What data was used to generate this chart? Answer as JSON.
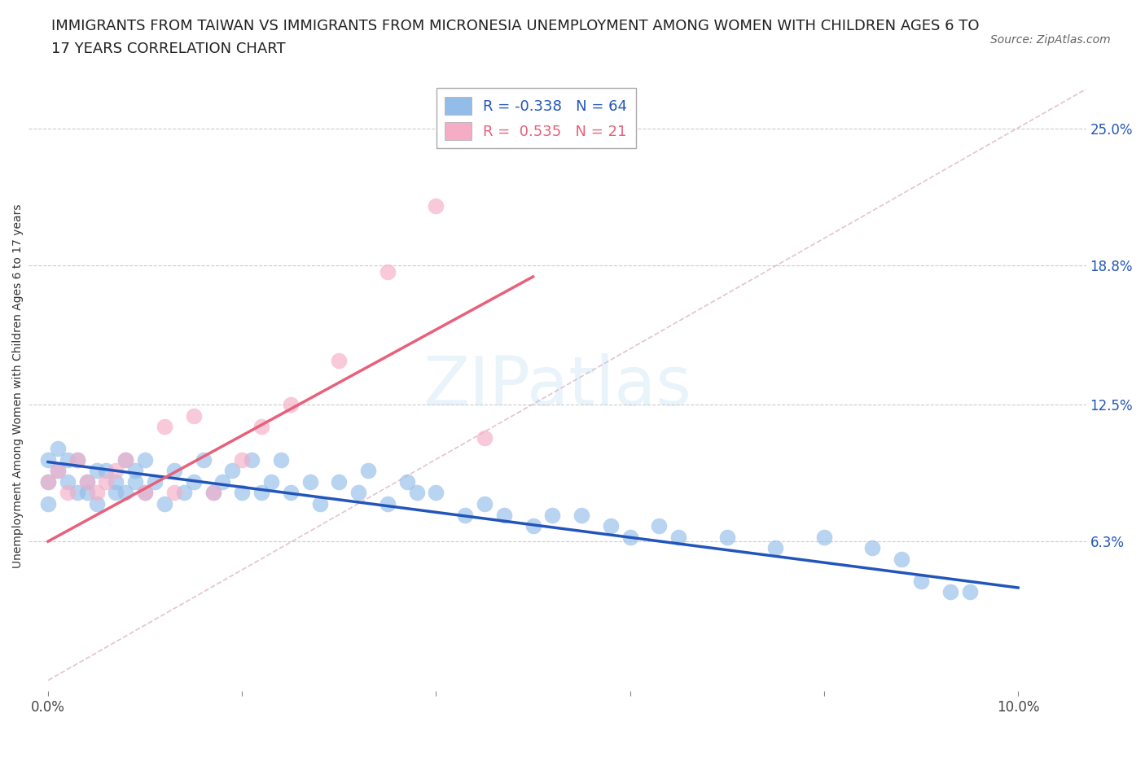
{
  "title_line1": "IMMIGRANTS FROM TAIWAN VS IMMIGRANTS FROM MICRONESIA UNEMPLOYMENT AMONG WOMEN WITH CHILDREN AGES 6 TO",
  "title_line2": "17 YEARS CORRELATION CHART",
  "source": "Source: ZipAtlas.com",
  "ylabel": "Unemployment Among Women with Children Ages 6 to 17 years",
  "ytick_labels": [
    "25.0%",
    "18.8%",
    "12.5%",
    "6.3%"
  ],
  "ytick_values": [
    0.25,
    0.188,
    0.125,
    0.063
  ],
  "xlim": [
    -0.002,
    0.107
  ],
  "ylim": [
    -0.005,
    0.272
  ],
  "r_taiwan": -0.338,
  "n_taiwan": 64,
  "r_micronesia": 0.535,
  "n_micronesia": 21,
  "taiwan_color": "#93bde8",
  "micronesia_color": "#f5adc5",
  "taiwan_line_color": "#2255bb",
  "micronesia_line_color": "#e8607a",
  "ref_line_color": "#e0b8c8",
  "taiwan_x": [
    0.0,
    0.0,
    0.0,
    0.001,
    0.001,
    0.002,
    0.002,
    0.003,
    0.003,
    0.004,
    0.004,
    0.005,
    0.005,
    0.006,
    0.007,
    0.007,
    0.008,
    0.008,
    0.009,
    0.009,
    0.01,
    0.01,
    0.011,
    0.012,
    0.013,
    0.014,
    0.015,
    0.016,
    0.017,
    0.018,
    0.019,
    0.02,
    0.021,
    0.022,
    0.023,
    0.024,
    0.025,
    0.027,
    0.028,
    0.03,
    0.032,
    0.033,
    0.035,
    0.037,
    0.038,
    0.04,
    0.043,
    0.045,
    0.047,
    0.05,
    0.052,
    0.055,
    0.058,
    0.06,
    0.063,
    0.065,
    0.07,
    0.075,
    0.08,
    0.085,
    0.088,
    0.09,
    0.093,
    0.095
  ],
  "taiwan_y": [
    0.1,
    0.09,
    0.08,
    0.095,
    0.105,
    0.09,
    0.1,
    0.085,
    0.1,
    0.085,
    0.09,
    0.095,
    0.08,
    0.095,
    0.085,
    0.09,
    0.085,
    0.1,
    0.09,
    0.095,
    0.085,
    0.1,
    0.09,
    0.08,
    0.095,
    0.085,
    0.09,
    0.1,
    0.085,
    0.09,
    0.095,
    0.085,
    0.1,
    0.085,
    0.09,
    0.1,
    0.085,
    0.09,
    0.08,
    0.09,
    0.085,
    0.095,
    0.08,
    0.09,
    0.085,
    0.085,
    0.075,
    0.08,
    0.075,
    0.07,
    0.075,
    0.075,
    0.07,
    0.065,
    0.07,
    0.065,
    0.065,
    0.06,
    0.065,
    0.06,
    0.055,
    0.045,
    0.04,
    0.04
  ],
  "micronesia_x": [
    0.0,
    0.001,
    0.002,
    0.003,
    0.004,
    0.005,
    0.006,
    0.007,
    0.008,
    0.01,
    0.012,
    0.013,
    0.015,
    0.017,
    0.02,
    0.022,
    0.025,
    0.03,
    0.035,
    0.04,
    0.045
  ],
  "micronesia_y": [
    0.09,
    0.095,
    0.085,
    0.1,
    0.09,
    0.085,
    0.09,
    0.095,
    0.1,
    0.085,
    0.115,
    0.085,
    0.12,
    0.085,
    0.1,
    0.115,
    0.125,
    0.145,
    0.185,
    0.215,
    0.11
  ],
  "taiwan_trend_x": [
    0.0,
    0.1
  ],
  "taiwan_trend_y": [
    0.099,
    0.042
  ],
  "micronesia_trend_x": [
    0.0,
    0.05
  ],
  "micronesia_trend_y": [
    0.063,
    0.183
  ],
  "legend_fontsize": 13,
  "tick_fontsize": 12,
  "title_fontsize": 13
}
